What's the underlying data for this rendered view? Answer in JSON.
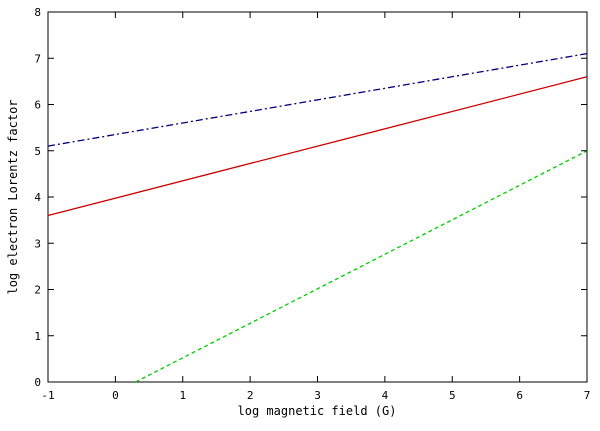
{
  "chart_data": {
    "type": "line",
    "title": "",
    "xlabel": "log magnetic field (G)",
    "ylabel": "log electron Lorentz factor",
    "xlim": [
      -1,
      7
    ],
    "ylim": [
      0,
      8
    ],
    "xticks": [
      -1,
      0,
      1,
      2,
      3,
      4,
      5,
      6,
      7
    ],
    "yticks": [
      0,
      1,
      2,
      3,
      4,
      5,
      6,
      7,
      8
    ],
    "grid": false,
    "legend": "none",
    "series": [
      {
        "x": [
          -1,
          7
        ],
        "y": [
          5.1,
          7.1
        ],
        "color": "#00007a",
        "style": "dash-dot"
      },
      {
        "x": [
          -1,
          7
        ],
        "y": [
          3.6,
          6.6
        ],
        "color": "#cc0000",
        "style": "solid"
      },
      {
        "x": [
          0.3,
          7
        ],
        "y": [
          0.0,
          5.0
        ],
        "color": "#00cc00",
        "style": "dashed"
      }
    ]
  }
}
